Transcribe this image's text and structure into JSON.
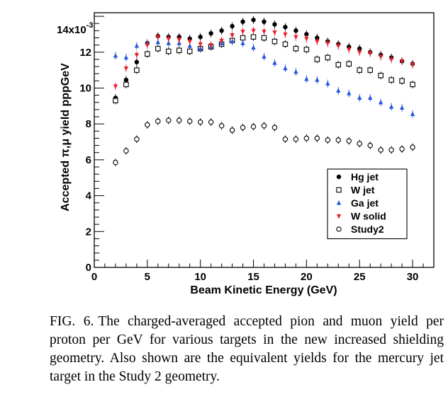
{
  "caption": {
    "label": "FIG. 6.",
    "text": "The charged-averaged accepted pion and muon yield per proton per GeV for various targets in the new increased shielding geometry. Also shown are the equivalent yields for the mercury jet target in the Study 2 geometry."
  },
  "chart_data": {
    "type": "scatter",
    "xlabel": "Beam Kinetic Energy (GeV)",
    "ylabel": "Accepted π,μ yield pppGeV",
    "y_multiplier": "14x10",
    "y_multiplier_exponent": "-3",
    "xlim": [
      0,
      32
    ],
    "ylim": [
      0,
      14.2
    ],
    "x_ticks": [
      0,
      5,
      10,
      15,
      20,
      25,
      30
    ],
    "y_ticks": [
      0,
      2,
      4,
      6,
      8,
      10,
      12
    ],
    "x_tick_labels": [
      "0",
      "5",
      "10",
      "15",
      "20",
      "25",
      "30"
    ],
    "y_tick_labels": [
      "0",
      "2",
      "4",
      "6",
      "8",
      "10",
      "12"
    ],
    "grid": false,
    "legend_position": "bottom-right",
    "x": [
      2,
      3,
      4,
      5,
      6,
      7,
      8,
      9,
      10,
      11,
      12,
      13,
      14,
      15,
      16,
      17,
      18,
      19,
      20,
      21,
      22,
      23,
      24,
      25,
      26,
      27,
      28,
      29,
      30
    ],
    "series": [
      {
        "name": "Hg jet",
        "marker": "filled-circle",
        "color": "#000000",
        "values": [
          9.45,
          10.45,
          11.45,
          12.5,
          12.9,
          12.85,
          12.85,
          12.75,
          12.85,
          13.05,
          13.2,
          13.45,
          13.7,
          13.8,
          13.7,
          13.55,
          13.4,
          13.2,
          13.0,
          12.8,
          12.6,
          12.45,
          12.3,
          12.2,
          12.0,
          11.85,
          11.7,
          11.5,
          11.35
        ]
      },
      {
        "name": "W jet",
        "marker": "open-square",
        "color": "#000000",
        "values": [
          9.3,
          10.2,
          11.0,
          11.9,
          12.2,
          12.05,
          12.1,
          12.05,
          12.2,
          12.3,
          12.45,
          12.65,
          12.8,
          12.85,
          12.8,
          12.6,
          12.45,
          12.2,
          12.15,
          11.6,
          11.7,
          11.3,
          11.35,
          11.0,
          11.0,
          10.7,
          10.45,
          10.4,
          10.2
        ]
      },
      {
        "name": "Ga jet",
        "marker": "filled-triangle-up",
        "color": "#2255dd",
        "values": [
          11.8,
          11.7,
          12.35,
          12.5,
          12.55,
          12.5,
          12.5,
          12.35,
          12.2,
          12.3,
          12.5,
          12.6,
          12.5,
          12.25,
          11.75,
          11.4,
          11.1,
          10.9,
          10.5,
          10.45,
          10.25,
          9.85,
          9.7,
          9.45,
          9.45,
          9.2,
          8.95,
          8.9,
          8.55
        ]
      },
      {
        "name": "W solid",
        "marker": "filled-triangle-down",
        "color": "#e8202a",
        "values": [
          10.1,
          11.1,
          11.85,
          12.4,
          12.85,
          12.75,
          12.7,
          12.6,
          12.45,
          12.4,
          12.65,
          12.95,
          13.15,
          13.2,
          13.15,
          13.1,
          13.0,
          12.85,
          12.75,
          12.6,
          12.5,
          12.35,
          12.15,
          12.0,
          11.95,
          11.75,
          11.6,
          11.5,
          11.3
        ]
      },
      {
        "name": "Study2",
        "marker": "open-circle",
        "color": "#000000",
        "values": [
          5.85,
          6.5,
          7.15,
          7.95,
          8.15,
          8.2,
          8.2,
          8.15,
          8.1,
          8.1,
          7.9,
          7.65,
          7.8,
          7.85,
          7.9,
          7.8,
          7.15,
          7.15,
          7.2,
          7.2,
          7.1,
          7.1,
          7.05,
          6.9,
          6.8,
          6.55,
          6.55,
          6.6,
          6.7
        ]
      }
    ]
  }
}
